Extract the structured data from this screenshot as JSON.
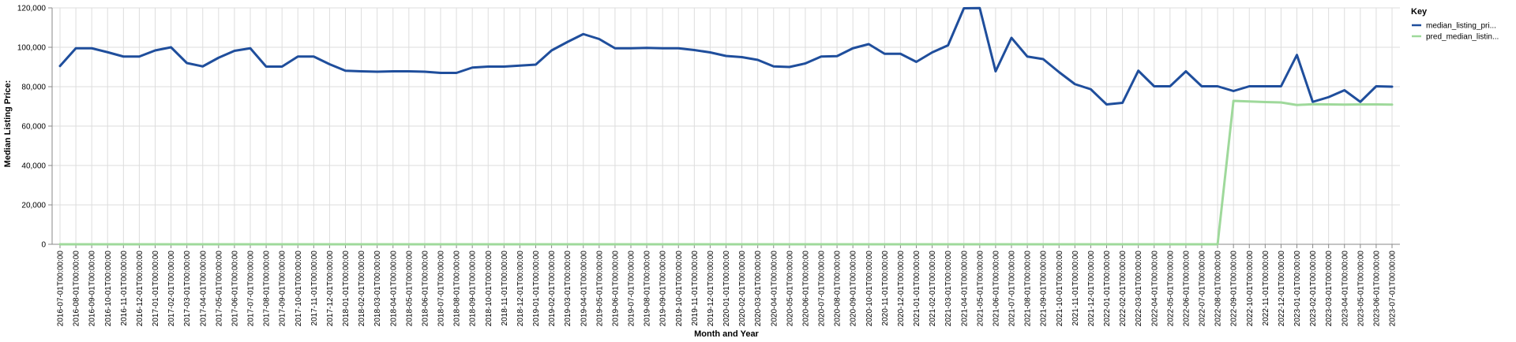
{
  "chart_data": {
    "type": "line",
    "xlabel": "Month and Year",
    "ylabel": "Median Listing Price:",
    "ylim": [
      0,
      120000
    ],
    "yticks": [
      0,
      20000,
      40000,
      60000,
      80000,
      100000,
      120000
    ],
    "ytick_labels": [
      "0",
      "20,000",
      "40,000",
      "60,000",
      "80,000",
      "100,000",
      "120,000"
    ],
    "grid": true,
    "legend": {
      "title": "Key",
      "position": "top-right"
    },
    "categories": [
      "2016-07-01T00:00:00",
      "2016-08-01T00:00:00",
      "2016-09-01T00:00:00",
      "2016-10-01T00:00:00",
      "2016-11-01T00:00:00",
      "2016-12-01T00:00:00",
      "2017-01-01T00:00:00",
      "2017-02-01T00:00:00",
      "2017-03-01T00:00:00",
      "2017-04-01T00:00:00",
      "2017-05-01T00:00:00",
      "2017-06-01T00:00:00",
      "2017-07-01T00:00:00",
      "2017-08-01T00:00:00",
      "2017-09-01T00:00:00",
      "2017-10-01T00:00:00",
      "2017-11-01T00:00:00",
      "2017-12-01T00:00:00",
      "2018-01-01T00:00:00",
      "2018-02-01T00:00:00",
      "2018-03-01T00:00:00",
      "2018-04-01T00:00:00",
      "2018-05-01T00:00:00",
      "2018-06-01T00:00:00",
      "2018-07-01T00:00:00",
      "2018-08-01T00:00:00",
      "2018-09-01T00:00:00",
      "2018-10-01T00:00:00",
      "2018-11-01T00:00:00",
      "2018-12-01T00:00:00",
      "2019-01-01T00:00:00",
      "2019-02-01T00:00:00",
      "2019-03-01T00:00:00",
      "2019-04-01T00:00:00",
      "2019-05-01T00:00:00",
      "2019-06-01T00:00:00",
      "2019-07-01T00:00:00",
      "2019-08-01T00:00:00",
      "2019-09-01T00:00:00",
      "2019-10-01T00:00:00",
      "2019-11-01T00:00:00",
      "2019-12-01T00:00:00",
      "2020-01-01T00:00:00",
      "2020-02-01T00:00:00",
      "2020-03-01T00:00:00",
      "2020-04-01T00:00:00",
      "2020-05-01T00:00:00",
      "2020-06-01T00:00:00",
      "2020-07-01T00:00:00",
      "2020-08-01T00:00:00",
      "2020-09-01T00:00:00",
      "2020-10-01T00:00:00",
      "2020-11-01T00:00:00",
      "2020-12-01T00:00:00",
      "2021-01-01T00:00:00",
      "2021-02-01T00:00:00",
      "2021-03-01T00:00:00",
      "2021-04-01T00:00:00",
      "2021-05-01T00:00:00",
      "2021-06-01T00:00:00",
      "2021-07-01T00:00:00",
      "2021-08-01T00:00:00",
      "2021-09-01T00:00:00",
      "2021-10-01T00:00:00",
      "2021-11-01T00:00:00",
      "2021-12-01T00:00:00",
      "2022-01-01T00:00:00",
      "2022-02-01T00:00:00",
      "2022-03-01T00:00:00",
      "2022-04-01T00:00:00",
      "2022-05-01T00:00:00",
      "2022-06-01T00:00:00",
      "2022-07-01T00:00:00",
      "2022-08-01T00:00:00",
      "2022-09-01T00:00:00",
      "2022-10-01T00:00:00",
      "2022-11-01T00:00:00",
      "2022-12-01T00:00:00",
      "2023-01-01T00:00:00",
      "2023-02-01T00:00:00",
      "2023-03-01T00:00:00",
      "2023-04-01T00:00:00",
      "2023-05-01T00:00:00",
      "2023-06-01T00:00:00",
      "2023-07-01T00:00:00"
    ],
    "series": [
      {
        "name": "median_listing_pri...",
        "color": "#1f4e9c",
        "values": [
          90500,
          99500,
          99500,
          97500,
          95300,
          95300,
          98400,
          100000,
          92000,
          90300,
          94700,
          98200,
          99500,
          90200,
          90200,
          95300,
          95300,
          91400,
          88100,
          87800,
          87600,
          87800,
          87800,
          87600,
          87000,
          87000,
          89700,
          90200,
          90200,
          90700,
          91200,
          98400,
          102700,
          106700,
          104200,
          99500,
          99500,
          99700,
          99500,
          99500,
          98600,
          97400,
          95600,
          95000,
          93600,
          90300,
          90000,
          91800,
          95300,
          95500,
          99500,
          101600,
          96700,
          96700,
          92600,
          97400,
          101000,
          119800,
          119900,
          87800,
          104800,
          95300,
          94000,
          87400,
          81300,
          78700,
          71000,
          71800,
          88100,
          80200,
          80200,
          87800,
          80200,
          80200,
          77800,
          80200,
          80200,
          80200,
          96100,
          72300,
          74700,
          78200,
          72300,
          80200,
          80000
        ]
      },
      {
        "name": "pred_median_listin...",
        "color": "#9fd99b",
        "values": [
          0,
          0,
          0,
          0,
          0,
          0,
          0,
          0,
          0,
          0,
          0,
          0,
          0,
          0,
          0,
          0,
          0,
          0,
          0,
          0,
          0,
          0,
          0,
          0,
          0,
          0,
          0,
          0,
          0,
          0,
          0,
          0,
          0,
          0,
          0,
          0,
          0,
          0,
          0,
          0,
          0,
          0,
          0,
          0,
          0,
          0,
          0,
          0,
          0,
          0,
          0,
          0,
          0,
          0,
          0,
          0,
          0,
          0,
          0,
          0,
          0,
          0,
          0,
          0,
          0,
          0,
          0,
          0,
          0,
          0,
          0,
          0,
          0,
          0,
          72800,
          72500,
          72200,
          72000,
          70700,
          71100,
          71000,
          70900,
          71000,
          71000,
          70900
        ]
      }
    ]
  }
}
